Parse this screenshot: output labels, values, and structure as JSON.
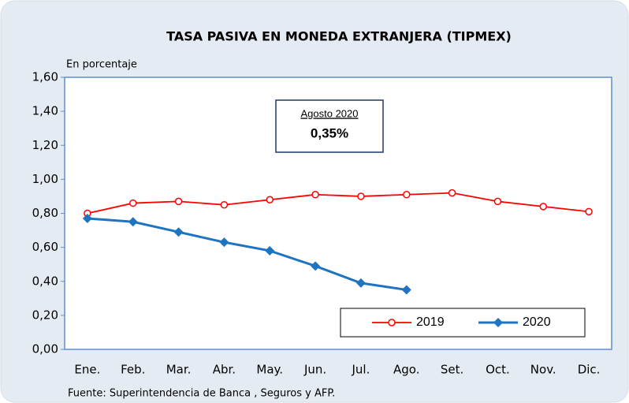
{
  "chart_data": {
    "type": "line",
    "title": "TASA PASIVA EN MONEDA EXTRANJERA (TIPMEX)",
    "subtitle": "En porcentaje",
    "source": "Fuente: Superintendencia de Banca , Seguros y AFP.",
    "annotation": {
      "title": "Agosto 2020",
      "text": "0,35%"
    },
    "categories": [
      "Ene.",
      "Feb.",
      "Mar.",
      "Abr.",
      "May.",
      "Jun.",
      "Jul.",
      "Ago.",
      "Set.",
      "Oct.",
      "Nov.",
      "Dic."
    ],
    "series": [
      {
        "name": "2019",
        "color": "#ff0000",
        "marker": "circle",
        "values": [
          0.8,
          0.86,
          0.87,
          0.85,
          0.88,
          0.91,
          0.9,
          0.91,
          0.92,
          0.87,
          0.84,
          0.81
        ]
      },
      {
        "name": "2020",
        "color": "#1f74c2",
        "marker": "diamond",
        "values": [
          0.77,
          0.75,
          0.69,
          0.63,
          0.58,
          0.49,
          0.39,
          0.35,
          null,
          null,
          null,
          null
        ]
      }
    ],
    "ylim": [
      0,
      1.6
    ],
    "yticks": [
      {
        "value": 0,
        "label": "0,00"
      },
      {
        "value": 0.2,
        "label": "0,20"
      },
      {
        "value": 0.4,
        "label": "0,40"
      },
      {
        "value": 0.6,
        "label": "0,60"
      },
      {
        "value": 0.8,
        "label": "0,80"
      },
      {
        "value": 1.0,
        "label": "1,00"
      },
      {
        "value": 1.2,
        "label": "1,20"
      },
      {
        "value": 1.4,
        "label": "1,40"
      },
      {
        "value": 1.6,
        "label": "1,60"
      }
    ],
    "grid": false,
    "legend": "lower right"
  }
}
